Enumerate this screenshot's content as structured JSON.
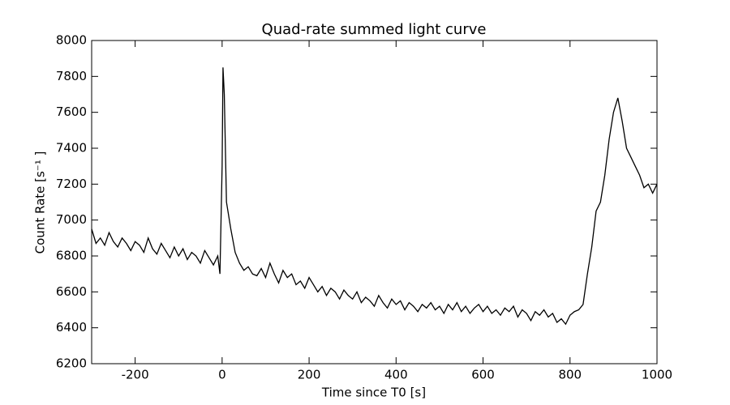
{
  "chart_data": {
    "type": "line",
    "title": "Quad-rate summed light curve",
    "x_label": "Time since T0 [s]",
    "y_label": "Count Rate [s⁻¹ ]",
    "xlim": [
      -300,
      1000
    ],
    "xticks": [
      -200,
      0,
      200,
      400,
      600,
      800,
      1000
    ],
    "ylim": [
      6200,
      8000
    ],
    "yticks": [
      6200,
      6400,
      6600,
      6800,
      7000,
      7200,
      7400,
      7600,
      7800,
      8000
    ],
    "grid": false,
    "series": [
      {
        "name": "light curve",
        "color": "#000000",
        "x": [
          -300,
          -290,
          -280,
          -270,
          -260,
          -250,
          -240,
          -230,
          -220,
          -210,
          -200,
          -190,
          -180,
          -170,
          -160,
          -150,
          -140,
          -130,
          -120,
          -110,
          -100,
          -90,
          -80,
          -70,
          -60,
          -50,
          -40,
          -30,
          -20,
          -10,
          -5,
          0,
          2,
          5,
          10,
          20,
          30,
          40,
          50,
          60,
          70,
          80,
          90,
          100,
          110,
          120,
          130,
          140,
          150,
          160,
          170,
          180,
          190,
          200,
          210,
          220,
          230,
          240,
          250,
          260,
          270,
          280,
          290,
          300,
          310,
          320,
          330,
          340,
          350,
          360,
          370,
          380,
          390,
          400,
          410,
          420,
          430,
          440,
          450,
          460,
          470,
          480,
          490,
          500,
          510,
          520,
          530,
          540,
          550,
          560,
          570,
          580,
          590,
          600,
          610,
          620,
          630,
          640,
          650,
          660,
          670,
          680,
          690,
          700,
          710,
          720,
          730,
          740,
          750,
          760,
          770,
          780,
          790,
          800,
          810,
          820,
          830,
          840,
          850,
          860,
          870,
          880,
          890,
          900,
          910,
          920,
          930,
          940,
          950,
          960,
          970,
          980,
          990,
          1000
        ],
        "values": [
          6950,
          6870,
          6900,
          6860,
          6930,
          6880,
          6850,
          6900,
          6870,
          6830,
          6880,
          6860,
          6820,
          6900,
          6840,
          6810,
          6870,
          6830,
          6790,
          6850,
          6800,
          6840,
          6780,
          6820,
          6800,
          6760,
          6830,
          6790,
          6750,
          6800,
          6700,
          7300,
          7850,
          7700,
          7100,
          6950,
          6820,
          6760,
          6720,
          6740,
          6700,
          6690,
          6730,
          6680,
          6760,
          6700,
          6650,
          6720,
          6680,
          6700,
          6640,
          6660,
          6620,
          6680,
          6640,
          6600,
          6630,
          6580,
          6620,
          6600,
          6560,
          6610,
          6580,
          6560,
          6600,
          6540,
          6570,
          6550,
          6520,
          6580,
          6540,
          6510,
          6560,
          6530,
          6550,
          6500,
          6540,
          6520,
          6490,
          6530,
          6510,
          6540,
          6500,
          6520,
          6480,
          6530,
          6500,
          6540,
          6490,
          6520,
          6480,
          6510,
          6530,
          6490,
          6520,
          6480,
          6500,
          6470,
          6510,
          6490,
          6520,
          6460,
          6500,
          6480,
          6440,
          6490,
          6470,
          6500,
          6460,
          6480,
          6430,
          6450,
          6420,
          6470,
          6490,
          6500,
          6530,
          6700,
          6850,
          7050,
          7100,
          7250,
          7450,
          7600,
          7680,
          7550,
          7400,
          7350,
          7300,
          7250,
          7180,
          7200,
          7150,
          7200
        ]
      }
    ]
  }
}
